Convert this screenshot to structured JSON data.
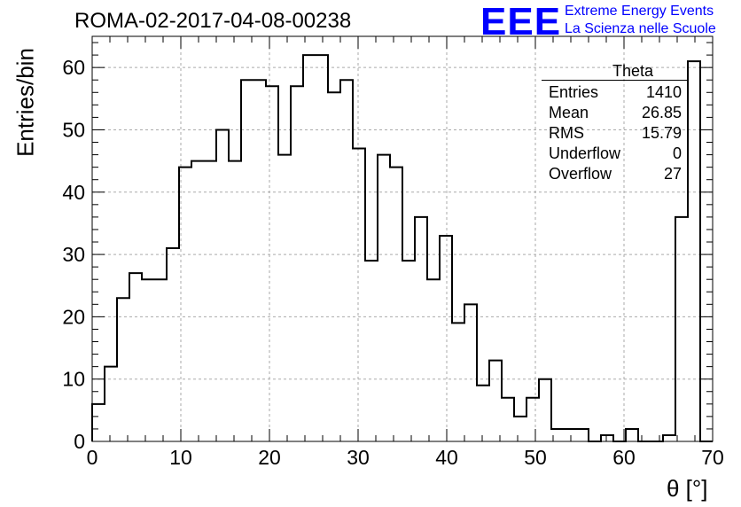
{
  "chart_data": {
    "type": "bar",
    "title": "ROMA-02-2017-04-08-00238",
    "xlabel": "θ [°]",
    "ylabel": "Entries/bin",
    "xlim": [
      0,
      70
    ],
    "ylim": [
      0,
      65
    ],
    "xticks": [
      0,
      10,
      20,
      30,
      40,
      50,
      60,
      70
    ],
    "yticks": [
      0,
      10,
      20,
      30,
      40,
      50,
      60
    ],
    "grid": true,
    "bin_width": 1.4,
    "values": [
      6,
      12,
      23,
      27,
      26,
      26,
      31,
      44,
      45,
      45,
      50,
      45,
      58,
      58,
      57,
      46,
      57,
      62,
      62,
      56,
      58,
      47,
      29,
      46,
      44,
      29,
      36,
      26,
      33,
      19,
      22,
      9,
      13,
      7,
      4,
      7,
      10,
      2,
      2,
      2,
      0,
      1,
      0,
      2,
      0,
      0,
      1,
      36,
      61,
      0
    ],
    "series": [
      {
        "values": [
          6,
          12,
          23,
          27,
          26,
          26,
          31,
          44,
          45,
          45,
          50,
          45,
          58,
          58,
          57,
          46,
          57,
          62,
          62,
          56,
          58,
          47,
          29,
          46,
          44,
          29,
          36,
          26,
          33,
          19,
          22,
          9,
          13,
          7,
          4,
          7,
          10,
          2,
          2,
          2,
          0,
          1,
          0,
          2,
          0,
          0,
          1,
          36,
          61,
          0
        ]
      }
    ]
  },
  "logo": {
    "mark": "EEE",
    "line1": "Extreme Energy Events",
    "line2": "La Scienza nelle Scuole",
    "color": "#0000ff"
  },
  "stats": {
    "title": "Theta",
    "rows": [
      {
        "label": "Entries",
        "value": "1410"
      },
      {
        "label": "Mean",
        "value": "26.85"
      },
      {
        "label": "RMS",
        "value": "15.79"
      },
      {
        "label": "Underflow",
        "value": "0"
      },
      {
        "label": "Overflow",
        "value": "27"
      }
    ]
  }
}
